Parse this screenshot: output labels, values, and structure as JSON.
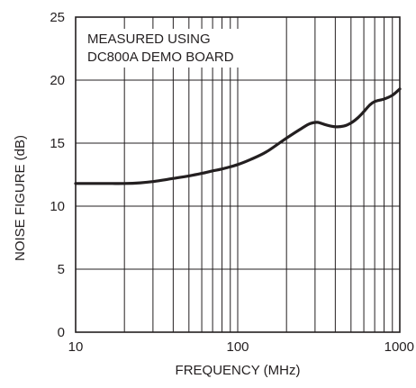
{
  "chart_data": {
    "type": "line",
    "title": "",
    "xlabel": "FREQUENCY (MHz)",
    "ylabel": "NOISE FIGURE (dB)",
    "x_scale": "log",
    "xlim": [
      10,
      1000
    ],
    "ylim": [
      0,
      25
    ],
    "grid": true,
    "x_ticks": [
      {
        "value": 10,
        "label": "10"
      },
      {
        "value": 100,
        "label": "100"
      },
      {
        "value": 1000,
        "label": "1000"
      }
    ],
    "y_ticks": [
      {
        "value": 0,
        "label": "0"
      },
      {
        "value": 5,
        "label": "5"
      },
      {
        "value": 10,
        "label": "10"
      },
      {
        "value": 15,
        "label": "15"
      },
      {
        "value": 20,
        "label": "20"
      },
      {
        "value": 25,
        "label": "25"
      }
    ],
    "annotation_lines": [
      "MEASURED USING",
      "DC800A DEMO BOARD"
    ],
    "series": [
      {
        "x": [
          10,
          15,
          20,
          25,
          30,
          40,
          50,
          60,
          70,
          80,
          100,
          120,
          150,
          200,
          250,
          280,
          310,
          350,
          400,
          450,
          500,
          550,
          600,
          650,
          700,
          800,
          900,
          1000
        ],
        "y": [
          11.8,
          11.8,
          11.8,
          11.85,
          11.95,
          12.2,
          12.4,
          12.6,
          12.8,
          12.95,
          13.3,
          13.7,
          14.3,
          15.4,
          16.2,
          16.55,
          16.65,
          16.45,
          16.3,
          16.35,
          16.6,
          17.0,
          17.5,
          18.0,
          18.3,
          18.5,
          18.8,
          19.3
        ]
      }
    ],
    "colors": {
      "line": "#231f20",
      "grid": "#231f20",
      "text": "#231f20"
    }
  }
}
